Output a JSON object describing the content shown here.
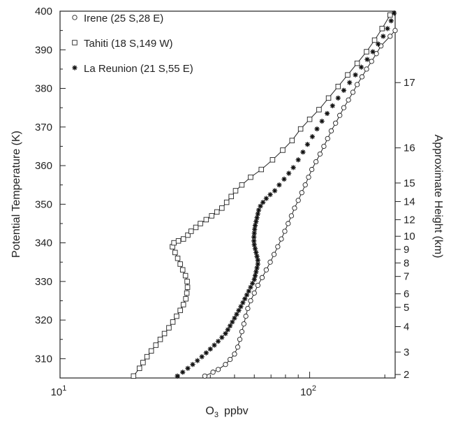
{
  "chart_data": {
    "type": "line",
    "xlabel_main": "O",
    "xlabel_sub": "3",
    "xlabel_unit": "ppbv",
    "ylabel": "Potential Temperature (K)",
    "y2label": "Approximate Height (km)",
    "xscale": "log",
    "xlim": [
      10,
      220
    ],
    "ylim": [
      305,
      400
    ],
    "x_ticks": [
      {
        "value": 10,
        "base": "10",
        "exp": "1"
      },
      {
        "value": 100,
        "base": "10",
        "exp": "2"
      }
    ],
    "y_ticks": [
      310,
      320,
      330,
      340,
      350,
      360,
      370,
      380,
      390,
      400
    ],
    "height_ticks": [
      {
        "label": "17",
        "y": 381.5
      },
      {
        "label": "16",
        "y": 364.6
      },
      {
        "label": "15",
        "y": 355.5
      },
      {
        "label": "14",
        "y": 350.7
      },
      {
        "label": "12",
        "y": 346.0
      },
      {
        "label": "10",
        "y": 341.7
      },
      {
        "label": "9",
        "y": 338.3
      },
      {
        "label": "8",
        "y": 334.8
      },
      {
        "label": "7",
        "y": 331.3
      },
      {
        "label": "6",
        "y": 326.8
      },
      {
        "label": "5",
        "y": 323.3
      },
      {
        "label": "4",
        "y": 318.3
      },
      {
        "label": "3",
        "y": 311.7
      },
      {
        "label": "2",
        "y": 305.9
      }
    ],
    "legend_position": "top-left",
    "series": [
      {
        "name": "Irene (25 S,28 E)",
        "marker": "circle",
        "points": [
          [
            38,
            305.5
          ],
          [
            41,
            306.5
          ],
          [
            43,
            307.2
          ],
          [
            46,
            308.5
          ],
          [
            48,
            309.8
          ],
          [
            50,
            311.2
          ],
          [
            51.5,
            313.0
          ],
          [
            52.5,
            315.0
          ],
          [
            53.5,
            317.0
          ],
          [
            54.5,
            319.0
          ],
          [
            55.5,
            321.0
          ],
          [
            56.5,
            323.0
          ],
          [
            58,
            325.0
          ],
          [
            60,
            327.0
          ],
          [
            62,
            329.0
          ],
          [
            64.5,
            331.0
          ],
          [
            67,
            333.0
          ],
          [
            69.5,
            335.0
          ],
          [
            72,
            337.0
          ],
          [
            74.5,
            339.0
          ],
          [
            77,
            341.0
          ],
          [
            79.5,
            343.0
          ],
          [
            82,
            345.0
          ],
          [
            84.5,
            347.0
          ],
          [
            87,
            349.0
          ],
          [
            90,
            351.0
          ],
          [
            93,
            353.0
          ],
          [
            96,
            355.0
          ],
          [
            99,
            357.0
          ],
          [
            102,
            359.0
          ],
          [
            106,
            361.0
          ],
          [
            110,
            363.0
          ],
          [
            114,
            365.0
          ],
          [
            118,
            367.0
          ],
          [
            122,
            369.0
          ],
          [
            127,
            371.0
          ],
          [
            132,
            373.0
          ],
          [
            137,
            375.0
          ],
          [
            143,
            377.0
          ],
          [
            149,
            379.0
          ],
          [
            155,
            381.0
          ],
          [
            162,
            383.0
          ],
          [
            169,
            385.0
          ],
          [
            177,
            387.0
          ],
          [
            185,
            389.0
          ],
          [
            193,
            391.0
          ],
          [
            210,
            393.5
          ],
          [
            220,
            395.0
          ]
        ]
      },
      {
        "name": "Tahiti (18 S,149 W)",
        "marker": "square",
        "points": [
          [
            19.7,
            305.5
          ],
          [
            20.8,
            307.5
          ],
          [
            21.5,
            309.0
          ],
          [
            22.3,
            310.5
          ],
          [
            23.2,
            312.0
          ],
          [
            24.2,
            313.5
          ],
          [
            25.2,
            315.0
          ],
          [
            26.2,
            316.5
          ],
          [
            27.3,
            318.0
          ],
          [
            28.3,
            319.5
          ],
          [
            29.3,
            321.0
          ],
          [
            30.3,
            322.5
          ],
          [
            31.2,
            324.0
          ],
          [
            31.9,
            325.5
          ],
          [
            32.2,
            327.0
          ],
          [
            32.4,
            328.5
          ],
          [
            32.3,
            330.0
          ],
          [
            31.8,
            331.5
          ],
          [
            31.0,
            333.0
          ],
          [
            30.3,
            334.5
          ],
          [
            29.6,
            336.0
          ],
          [
            28.9,
            337.5
          ],
          [
            28.2,
            339.0
          ],
          [
            28.6,
            340.0
          ],
          [
            29.8,
            340.5
          ],
          [
            31.2,
            341.0
          ],
          [
            32.5,
            342.0
          ],
          [
            33.5,
            343.0
          ],
          [
            35.0,
            344.0
          ],
          [
            36.5,
            345.0
          ],
          [
            38.5,
            346.0
          ],
          [
            40.5,
            347.0
          ],
          [
            42.5,
            348.0
          ],
          [
            44.5,
            349.0
          ],
          [
            46.5,
            350.5
          ],
          [
            48.5,
            352.0
          ],
          [
            50.5,
            353.5
          ],
          [
            53.5,
            355.0
          ],
          [
            58.0,
            357.0
          ],
          [
            64.0,
            359.0
          ],
          [
            71.0,
            361.5
          ],
          [
            78.0,
            364.0
          ],
          [
            85.0,
            366.5
          ],
          [
            92.0,
            369.5
          ],
          [
            100.0,
            372.0
          ],
          [
            109.0,
            374.5
          ],
          [
            119.0,
            377.5
          ],
          [
            130.0,
            380.5
          ],
          [
            142.0,
            383.5
          ],
          [
            155.0,
            386.5
          ],
          [
            169.0,
            389.5
          ],
          [
            182.0,
            392.5
          ],
          [
            195.0,
            395.5
          ],
          [
            210.0,
            399.0
          ]
        ]
      },
      {
        "name": "La Reunion (21 S,55 E)",
        "marker": "star",
        "points": [
          [
            29.5,
            305.5
          ],
          [
            31.0,
            306.5
          ],
          [
            32.5,
            307.5
          ],
          [
            34.0,
            308.5
          ],
          [
            35.5,
            309.5
          ],
          [
            37.0,
            310.5
          ],
          [
            38.5,
            311.5
          ],
          [
            40.0,
            312.5
          ],
          [
            41.5,
            313.5
          ],
          [
            43.0,
            314.5
          ],
          [
            44.5,
            315.5
          ],
          [
            46.0,
            316.5
          ],
          [
            47.0,
            317.5
          ],
          [
            48.0,
            318.5
          ],
          [
            49.0,
            319.5
          ],
          [
            50.0,
            320.5
          ],
          [
            51.0,
            321.5
          ],
          [
            52.0,
            322.5
          ],
          [
            53.0,
            323.5
          ],
          [
            54.0,
            324.5
          ],
          [
            55.0,
            325.5
          ],
          [
            56.0,
            326.5
          ],
          [
            57.0,
            327.5
          ],
          [
            58.0,
            328.5
          ],
          [
            59.0,
            329.5
          ],
          [
            60.0,
            330.5
          ],
          [
            60.5,
            331.5
          ],
          [
            61.0,
            332.5
          ],
          [
            61.5,
            333.5
          ],
          [
            62.0,
            334.5
          ],
          [
            62.0,
            335.5
          ],
          [
            61.5,
            336.5
          ],
          [
            61.0,
            337.5
          ],
          [
            60.5,
            338.5
          ],
          [
            60.0,
            339.5
          ],
          [
            59.8,
            340.5
          ],
          [
            59.8,
            341.5
          ],
          [
            60.0,
            342.5
          ],
          [
            60.2,
            343.5
          ],
          [
            60.5,
            344.5
          ],
          [
            61.0,
            345.5
          ],
          [
            61.5,
            346.5
          ],
          [
            62.0,
            347.5
          ],
          [
            62.5,
            348.5
          ],
          [
            63.5,
            349.5
          ],
          [
            65.0,
            350.5
          ],
          [
            67.0,
            351.5
          ],
          [
            69.5,
            352.5
          ],
          [
            72.5,
            353.5
          ],
          [
            75.5,
            355.0
          ],
          [
            79.0,
            356.5
          ],
          [
            82.5,
            358.0
          ],
          [
            86.0,
            359.5
          ],
          [
            90.0,
            361.5
          ],
          [
            94.0,
            363.5
          ],
          [
            98.0,
            365.5
          ],
          [
            102.5,
            367.5
          ],
          [
            107.0,
            369.5
          ],
          [
            112.0,
            371.5
          ],
          [
            117.5,
            373.5
          ],
          [
            123.5,
            375.5
          ],
          [
            130.0,
            377.5
          ],
          [
            137.0,
            379.5
          ],
          [
            144.5,
            381.5
          ],
          [
            152.5,
            383.5
          ],
          [
            161.0,
            385.5
          ],
          [
            170.0,
            387.5
          ],
          [
            179.0,
            389.5
          ],
          [
            188.0,
            391.5
          ],
          [
            197.0,
            393.5
          ],
          [
            205.0,
            395.5
          ],
          [
            212.0,
            397.5
          ],
          [
            218.0,
            399.5
          ]
        ]
      }
    ]
  }
}
